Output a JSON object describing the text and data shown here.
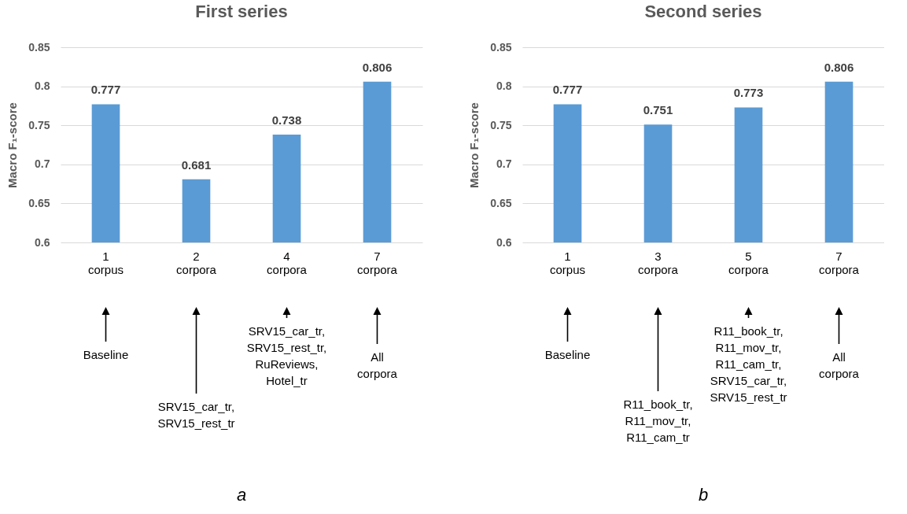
{
  "chart_data": [
    {
      "type": "bar",
      "title": "First series",
      "ylabel": "Macro F₁-score",
      "categories": [
        "1\ncorpus",
        "2\ncorpora",
        "4\ncorpora",
        "7\ncorpora"
      ],
      "values": [
        0.777,
        0.681,
        0.738,
        0.806
      ],
      "color": "#5b9bd5",
      "ylim": [
        0.6,
        0.85
      ],
      "yticks": [
        0.6,
        0.65,
        0.7,
        0.75,
        0.8,
        0.85
      ],
      "grid": "y",
      "data_labels": true,
      "annotations": [
        "Baseline",
        "SRV15_car_tr,\nSRV15_rest_tr",
        "SRV15_car_tr,\nSRV15_rest_tr,\nRuReviews,\nHotel_tr",
        "All\ncorpora",
        "a"
      ]
    },
    {
      "type": "bar",
      "title": "Second series",
      "ylabel": "Macro F₁-score",
      "categories": [
        "1\ncorpus",
        "3\ncorpora",
        "5\ncorpora",
        "7\ncorpora"
      ],
      "values": [
        0.777,
        0.751,
        0.773,
        0.806
      ],
      "color": "#5b9bd5",
      "ylim": [
        0.6,
        0.85
      ],
      "yticks": [
        0.6,
        0.65,
        0.7,
        0.75,
        0.8,
        0.85
      ],
      "grid": "y",
      "data_labels": true,
      "annotations": [
        "Baseline",
        "R11_book_tr,\nR11_mov_tr,\nR11_cam_tr",
        "R11_book_tr,\nR11_mov_tr,\nR11_cam_tr,\nSRV15_car_tr,\nSRV15_rest_tr",
        "All\ncorpora",
        "b"
      ]
    }
  ]
}
